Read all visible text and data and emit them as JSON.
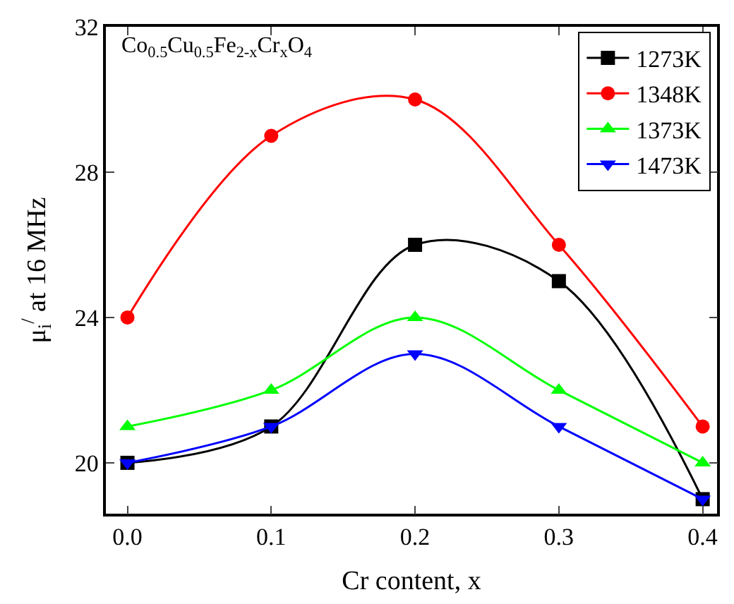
{
  "chart_data": {
    "type": "line",
    "annotations": [
      "Co$_{0.5}$Cu$_{0.5}$Fe$_{2-x}$Cr$_{x}$O$_{4}$"
    ],
    "xlabel": "Cr content, x",
    "ylabel": "μ$_{i}$$^{/}$ at 16 MHz",
    "x": [
      0.0,
      0.1,
      0.2,
      0.3,
      0.4
    ],
    "series": [
      {
        "name": "1273K",
        "color": "#000000",
        "marker": "square",
        "values": [
          20,
          21,
          26,
          25,
          19
        ]
      },
      {
        "name": "1348K",
        "color": "#ff0000",
        "marker": "circle",
        "values": [
          24,
          29,
          30,
          26,
          21
        ]
      },
      {
        "name": "1373K",
        "color": "#00ff00",
        "marker": "triangle",
        "values": [
          21,
          22,
          24,
          22,
          20
        ]
      },
      {
        "name": "1473K",
        "color": "#0000ff",
        "marker": "triangle-down",
        "values": [
          20,
          21,
          23,
          21,
          19
        ]
      }
    ],
    "xlim": [
      -0.015,
      0.41
    ],
    "xticks": [
      {
        "value": 0.0,
        "label": "0.0"
      },
      0.1,
      0.2,
      0.3,
      0.4
    ],
    "ylim": [
      18.6,
      32
    ],
    "yticks": [
      20,
      24,
      28,
      32
    ],
    "legend": "top right"
  }
}
